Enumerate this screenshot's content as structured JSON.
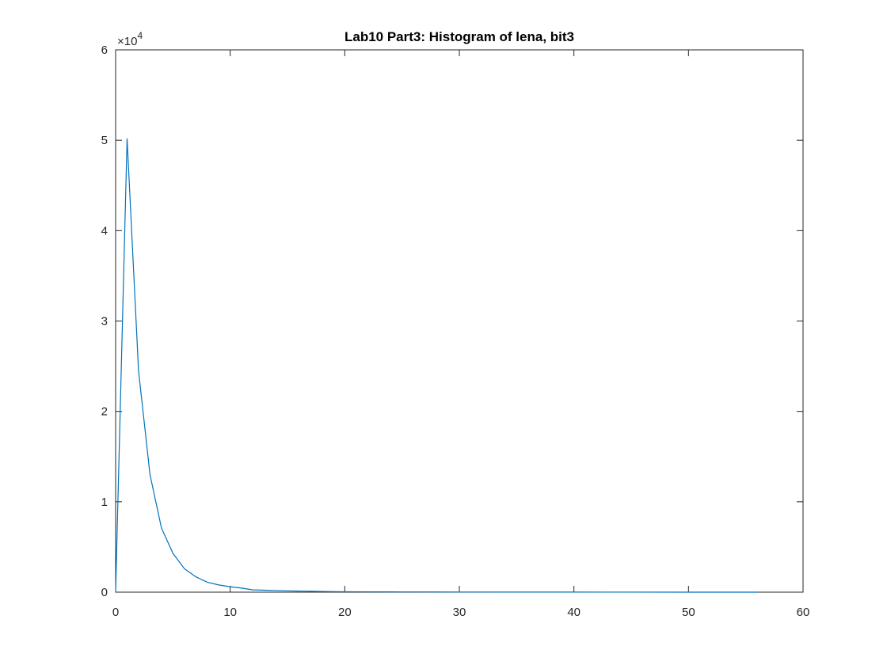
{
  "chart_data": {
    "type": "line",
    "title": "Lab10 Part3: Histogram of lena, bit3",
    "xlabel": "",
    "ylabel": "",
    "xlim": [
      0,
      60
    ],
    "ylim": [
      0,
      60000
    ],
    "xticks": [
      0,
      10,
      20,
      30,
      40,
      50,
      60
    ],
    "xtick_labels": [
      "0",
      "10",
      "20",
      "30",
      "40",
      "50",
      "60"
    ],
    "yticks": [
      0,
      10000,
      20000,
      30000,
      40000,
      50000,
      60000
    ],
    "ytick_labels": [
      "0",
      "1",
      "2",
      "3",
      "4",
      "5",
      "6"
    ],
    "y_multiplier_base": "×10",
    "y_multiplier_exp": "4",
    "grid": false,
    "line_color": "#0072BD",
    "series": [
      {
        "x": [
          0,
          1,
          2,
          3,
          4,
          5,
          6,
          7,
          8,
          9,
          10,
          11,
          12,
          13,
          14,
          15,
          16,
          17,
          18,
          19,
          20,
          22,
          24,
          26,
          28,
          30,
          35,
          40,
          45,
          50,
          56
        ],
        "y": [
          0,
          50200,
          24500,
          13000,
          7100,
          4300,
          2600,
          1700,
          1100,
          800,
          600,
          450,
          250,
          220,
          180,
          150,
          120,
          100,
          80,
          60,
          50,
          40,
          30,
          25,
          20,
          15,
          10,
          8,
          5,
          3,
          0
        ]
      }
    ]
  }
}
